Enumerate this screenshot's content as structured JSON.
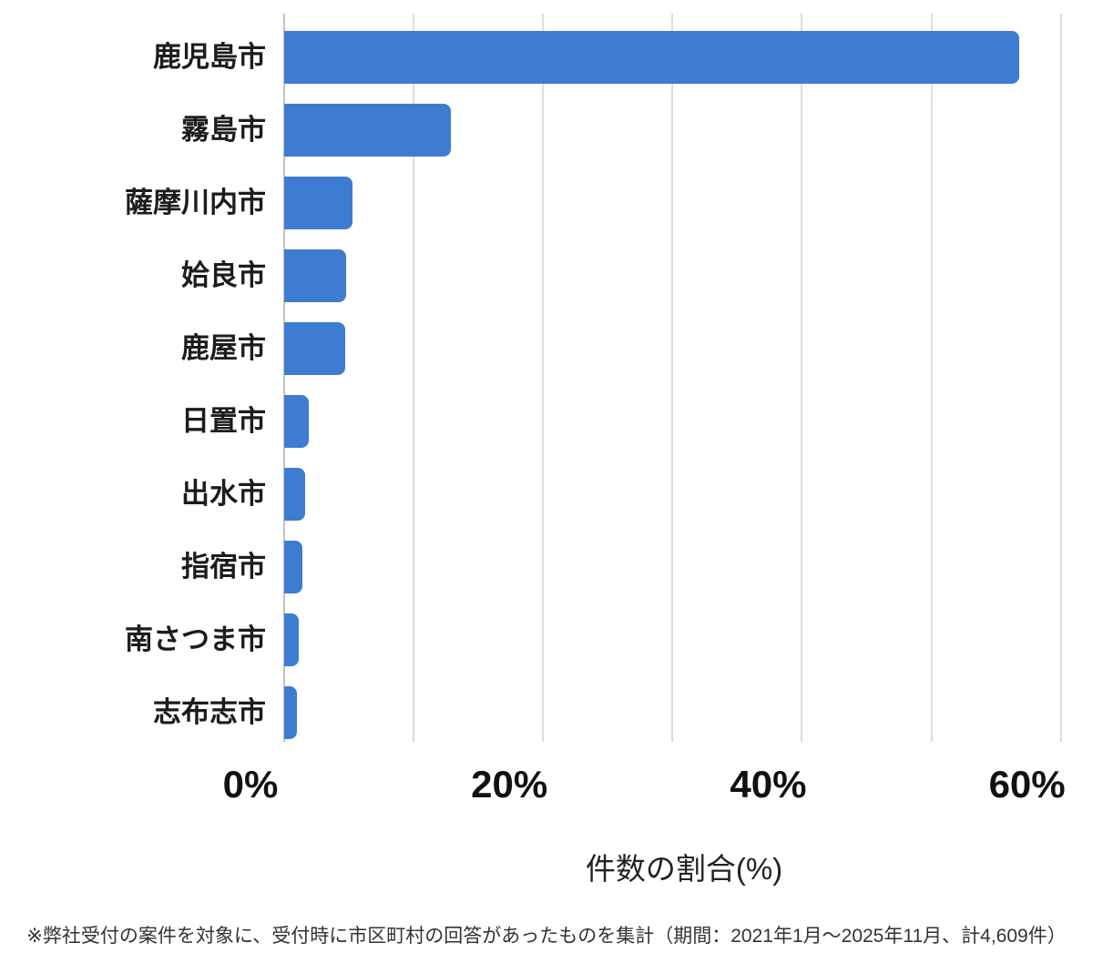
{
  "chart_data": {
    "type": "bar",
    "orientation": "horizontal",
    "title": "",
    "categories": [
      "鹿児島市",
      "霧島市",
      "薩摩川内市",
      "姶良市",
      "鹿屋市",
      "日置市",
      "出水市",
      "指宿市",
      "南さつま市",
      "志布志市"
    ],
    "values": [
      56.8,
      12.9,
      5.3,
      4.8,
      4.7,
      1.9,
      1.6,
      1.4,
      1.1,
      1.0
    ],
    "xlabel": "件数の割合(%)",
    "ylabel": "",
    "x_ticks": [
      {
        "label": "0%",
        "value": 0
      },
      {
        "label": "20%",
        "value": 20
      },
      {
        "label": "40%",
        "value": 40
      },
      {
        "label": "60%",
        "value": 60
      }
    ],
    "xlim": [
      0,
      62
    ],
    "gridline_step": 10,
    "grid": "vertical-only",
    "legend": "none",
    "bar_color": "#3E7CD2"
  },
  "footnote": "※弊社受付の案件を対象に、受付時に市区町村の回答があったものを集計（期間：2021年1月～2025年11月、計4,609件）",
  "colors": {
    "bar": "#3E7CD2",
    "gridline": "#dcdcdc",
    "axis_line": "#c3c3c3",
    "category_label": "#1c1c1c",
    "tick_label": "#111111",
    "footnote": "#333333",
    "background": "#ffffff"
  }
}
